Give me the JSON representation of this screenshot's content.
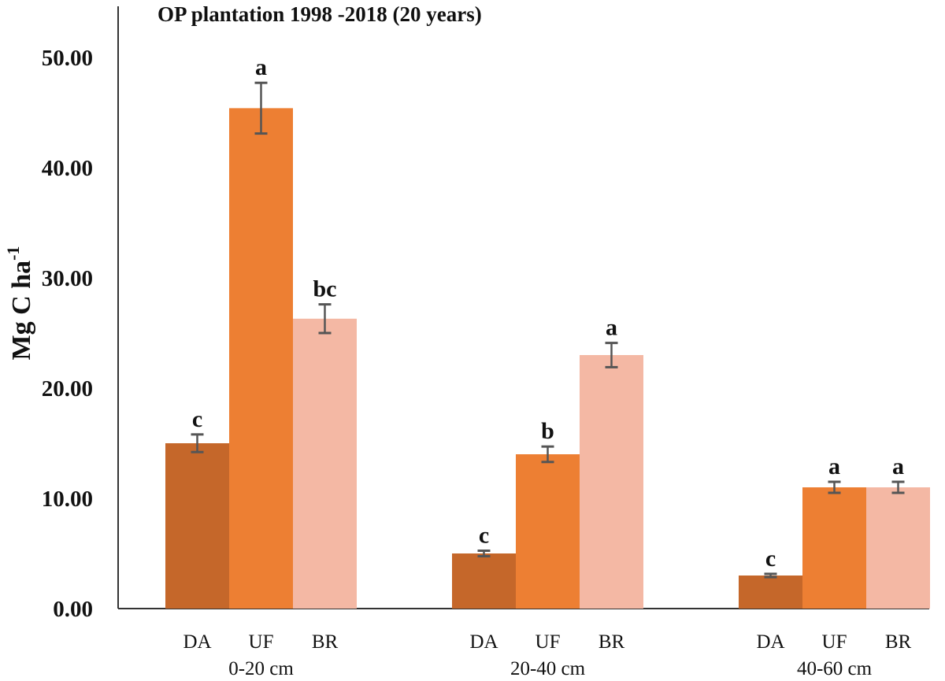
{
  "chart_data": {
    "type": "bar",
    "title": "OP plantation 1998 -2018 (20 years)",
    "ylabel": "Mg C ha",
    "ylabel_superscript": "-1",
    "xlabel": "",
    "ylim": [
      0,
      50
    ],
    "yticks": [
      0,
      10,
      20,
      30,
      40,
      50
    ],
    "ytick_labels": [
      "0.00",
      "10.00",
      "20.00",
      "30.00",
      "40.00",
      "50.00"
    ],
    "grid": false,
    "legend": "none",
    "groups": [
      {
        "name": "0-20 cm",
        "bars": [
          {
            "label": "DA",
            "value": 15.0,
            "error": 0.8,
            "sig": "c"
          },
          {
            "label": "UF",
            "value": 45.4,
            "error": 2.3,
            "sig": "a"
          },
          {
            "label": "BR",
            "value": 26.3,
            "error": 1.3,
            "sig": "bc"
          }
        ]
      },
      {
        "name": "20-40 cm",
        "bars": [
          {
            "label": "DA",
            "value": 5.0,
            "error": 0.25,
            "sig": "c"
          },
          {
            "label": "UF",
            "value": 14.0,
            "error": 0.7,
            "sig": "b"
          },
          {
            "label": "BR",
            "value": 23.0,
            "error": 1.1,
            "sig": "a"
          }
        ]
      },
      {
        "name": "40-60 cm",
        "bars": [
          {
            "label": "DA",
            "value": 3.0,
            "error": 0.15,
            "sig": "c"
          },
          {
            "label": "UF",
            "value": 11.0,
            "error": 0.5,
            "sig": "a"
          },
          {
            "label": "BR",
            "value": 11.0,
            "error": 0.5,
            "sig": "a"
          }
        ]
      }
    ],
    "colors": {
      "DA": "#c5672a",
      "UF": "#ed7f33",
      "BR": "#f4b8a4",
      "error_bar": "#555555",
      "axis": "#333333"
    }
  }
}
